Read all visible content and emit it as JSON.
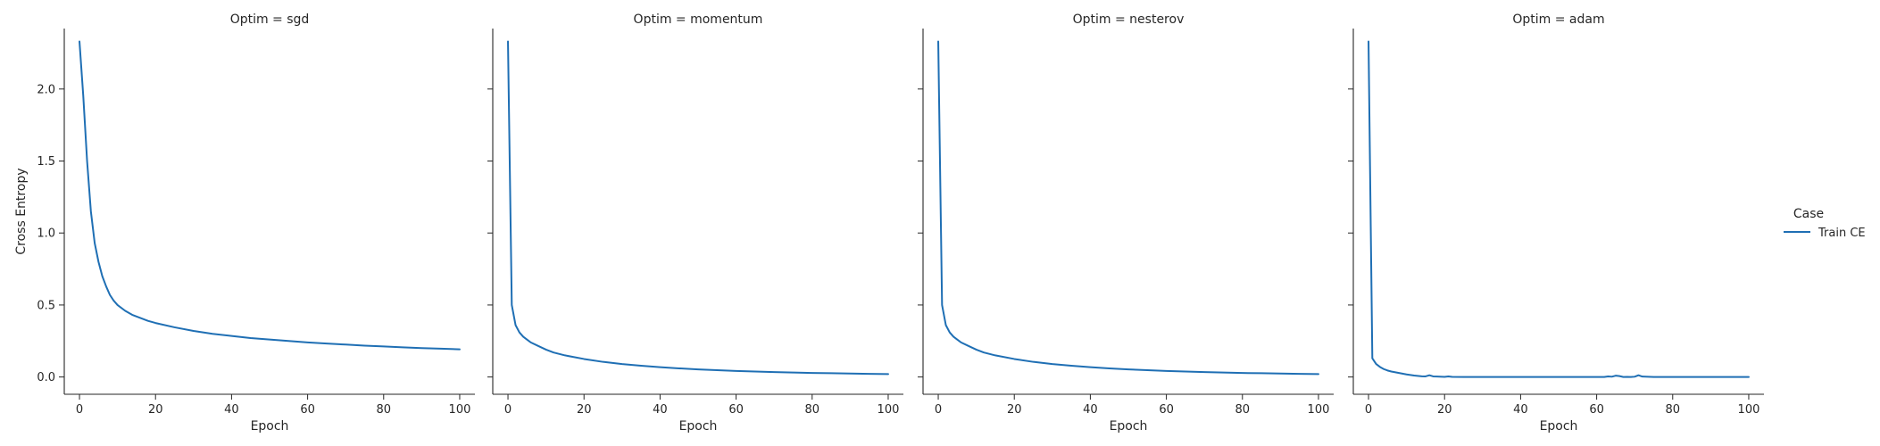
{
  "chart_data": {
    "type": "line",
    "facet_label_prefix": "Optim = ",
    "xlabel": "Epoch",
    "ylabel": "Cross Entropy",
    "xlim": [
      -4,
      104
    ],
    "ylim": [
      -0.12,
      2.42
    ],
    "xticks": [
      0,
      20,
      40,
      60,
      80,
      100
    ],
    "yticks": [
      0.0,
      0.5,
      1.0,
      1.5,
      2.0
    ],
    "ytick_labels": [
      "0.0",
      "0.5",
      "1.0",
      "1.5",
      "2.0"
    ],
    "grid": false,
    "color": "#1f6fb4",
    "legend": {
      "title": "Case",
      "placement": "right",
      "entries": [
        "Train CE"
      ]
    },
    "panels": [
      {
        "optim": "sgd",
        "series": [
          {
            "name": "Train CE",
            "x": [
              0,
              1,
              2,
              3,
              4,
              5,
              6,
              7,
              8,
              9,
              10,
              12,
              14,
              16,
              18,
              20,
              25,
              30,
              35,
              40,
              45,
              50,
              55,
              60,
              65,
              70,
              75,
              80,
              85,
              90,
              95,
              100
            ],
            "y": [
              2.33,
              1.95,
              1.5,
              1.15,
              0.93,
              0.8,
              0.7,
              0.63,
              0.57,
              0.53,
              0.5,
              0.46,
              0.43,
              0.41,
              0.39,
              0.375,
              0.345,
              0.32,
              0.3,
              0.285,
              0.27,
              0.26,
              0.25,
              0.24,
              0.232,
              0.225,
              0.218,
              0.212,
              0.206,
              0.201,
              0.197,
              0.192
            ]
          }
        ]
      },
      {
        "optim": "momentum",
        "series": [
          {
            "name": "Train CE",
            "x": [
              0,
              1,
              2,
              3,
              4,
              5,
              6,
              8,
              10,
              12,
              15,
              20,
              25,
              30,
              35,
              40,
              45,
              50,
              55,
              60,
              65,
              70,
              75,
              80,
              85,
              90,
              95,
              100
            ],
            "y": [
              2.33,
              0.5,
              0.36,
              0.31,
              0.28,
              0.26,
              0.24,
              0.215,
              0.19,
              0.17,
              0.15,
              0.125,
              0.105,
              0.09,
              0.078,
              0.068,
              0.06,
              0.053,
              0.047,
              0.042,
              0.038,
              0.034,
              0.031,
              0.028,
              0.026,
              0.024,
              0.022,
              0.02
            ]
          }
        ]
      },
      {
        "optim": "nesterov",
        "series": [
          {
            "name": "Train CE",
            "x": [
              0,
              1,
              2,
              3,
              4,
              5,
              6,
              8,
              10,
              12,
              15,
              20,
              25,
              30,
              35,
              40,
              45,
              50,
              55,
              60,
              65,
              70,
              75,
              80,
              85,
              90,
              95,
              100
            ],
            "y": [
              2.33,
              0.5,
              0.36,
              0.31,
              0.28,
              0.26,
              0.24,
              0.215,
              0.19,
              0.17,
              0.15,
              0.125,
              0.105,
              0.09,
              0.078,
              0.068,
              0.06,
              0.053,
              0.047,
              0.042,
              0.038,
              0.034,
              0.031,
              0.028,
              0.026,
              0.024,
              0.022,
              0.02
            ]
          }
        ]
      },
      {
        "optim": "adam",
        "series": [
          {
            "name": "Train CE",
            "x": [
              0,
              1,
              2,
              3,
              4,
              5,
              6,
              8,
              10,
              12,
              14,
              15,
              16,
              17,
              18,
              20,
              21,
              22,
              25,
              30,
              40,
              50,
              60,
              62,
              63,
              64,
              65,
              66,
              67,
              68,
              69,
              70,
              71,
              72,
              75,
              80,
              90,
              100
            ],
            "y": [
              2.33,
              0.13,
              0.09,
              0.07,
              0.055,
              0.045,
              0.038,
              0.028,
              0.018,
              0.01,
              0.005,
              0.004,
              0.012,
              0.004,
              0.003,
              0.001,
              0.004,
              0.001,
              0.0,
              0.0,
              0.0,
              0.0,
              0.0,
              0.0,
              0.004,
              0.002,
              0.009,
              0.006,
              0.0,
              0.001,
              0.0,
              0.002,
              0.012,
              0.003,
              0.0,
              0.0,
              0.0,
              0.0
            ]
          }
        ]
      }
    ]
  }
}
